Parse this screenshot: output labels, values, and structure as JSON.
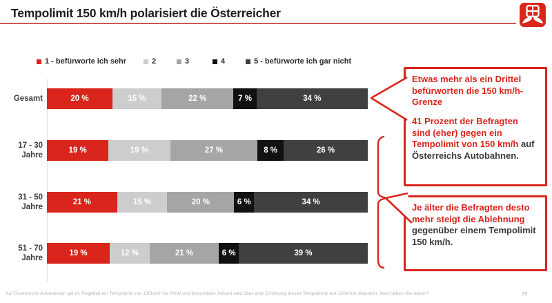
{
  "header": {
    "title": "Tempolimit 150 km/h polarisiert die Österreicher",
    "accent_color": "#d9251c",
    "rule_color": "#cd584c"
  },
  "legend": [
    {
      "label": "1 - befürworte ich sehr",
      "color": "#d9251c"
    },
    {
      "label": "2",
      "color": "#cdcdcd"
    },
    {
      "label": "3",
      "color": "#a5a5a5"
    },
    {
      "label": "4",
      "color": "#111111"
    },
    {
      "label": "5 - befürworte ich gar nicht",
      "color": "#404040"
    }
  ],
  "chart_data": {
    "type": "bar",
    "orientation": "horizontal-stacked",
    "title": "",
    "categories": [
      "Gesamt",
      "17 - 30 Jahre",
      "31 - 50 Jahre",
      "51 - 70 Jahre"
    ],
    "series": [
      {
        "name": "1 - befürworte ich sehr",
        "color": "#d9251c",
        "values": [
          20,
          19,
          21,
          19
        ]
      },
      {
        "name": "2",
        "color": "#cdcdcd",
        "values": [
          15,
          19,
          15,
          12
        ]
      },
      {
        "name": "3",
        "color": "#a5a5a5",
        "values": [
          22,
          27,
          20,
          21
        ]
      },
      {
        "name": "4",
        "color": "#111111",
        "values": [
          7,
          8,
          6,
          6
        ]
      },
      {
        "name": "5 - befürworte ich gar nicht",
        "color": "#404040",
        "values": [
          34,
          26,
          34,
          39
        ]
      }
    ],
    "value_suffix": " %",
    "xlim": [
      0,
      100
    ],
    "grid": false,
    "legend_position": "top"
  },
  "callouts": [
    {
      "paragraphs": [
        [
          {
            "text": "Etwas mehr als ein Drittel befürworten die 150 km/h-Grenze",
            "tone": "red"
          }
        ],
        [
          {
            "text": "41 Prozent der Befragten sind (eher) gegen ein Tempolimit von 150 km/h ",
            "tone": "red"
          },
          {
            "text": "auf Österreichs Autobahnen.",
            "tone": "dark"
          }
        ]
      ]
    },
    {
      "paragraphs": [
        [
          {
            "text": "Je älter die Befragten desto mehr steigt die Ablehnung ",
            "tone": "red"
          },
          {
            "text": "gegenüber einem Tempolimit 150 km/h.",
            "tone": "dark"
          }
        ]
      ]
    }
  ],
  "footer": {
    "note": "Auf Österreichs Autobahnen gilt im Regelfall ein Tempolimit von 130km/h für PKW und Motorräder. Aktuell wird über eine Erhöhung dieses Tempolimits auf 150km/h diskutiert. Was halten Sie davon?",
    "page": "26"
  }
}
